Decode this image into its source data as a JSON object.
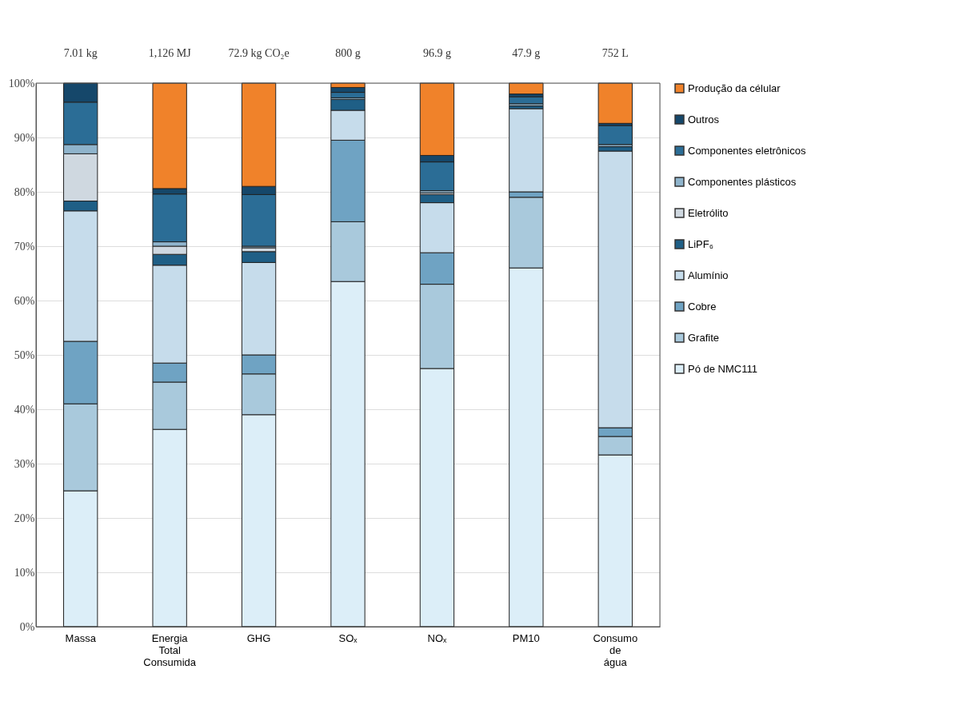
{
  "chart_data": {
    "type": "bar",
    "stacked": true,
    "categories": [
      "Massa",
      "Energia Total Consumida",
      "GHG",
      "SOₓ",
      "NOₓ",
      "PM10",
      "Consumo de água"
    ],
    "series": [
      {
        "name": "Pó de NMC111",
        "color": "#dceef8",
        "values": [
          25,
          36.3,
          39,
          63.5,
          47.5,
          66,
          31.6
        ]
      },
      {
        "name": "Grafite",
        "color": "#a9c9dc",
        "values": [
          16,
          8.7,
          7.5,
          11,
          15.5,
          13,
          3.4
        ]
      },
      {
        "name": "Cobre",
        "color": "#6fa3c3",
        "values": [
          11.5,
          3.5,
          3.5,
          15,
          5.8,
          1,
          1.6
        ]
      },
      {
        "name": "Alumínio",
        "color": "#c6dceb",
        "values": [
          24,
          18,
          17,
          5.5,
          9.2,
          15.3,
          50.9
        ]
      },
      {
        "name": "LiPF₆",
        "color": "#1f5f86",
        "values": [
          1.8,
          2,
          2,
          2,
          1.5,
          0.5,
          0.8
        ]
      },
      {
        "name": "Eletrólito",
        "color": "#cfd8e0",
        "values": [
          8.7,
          1.5,
          0.7,
          0,
          0.3,
          0,
          0
        ]
      },
      {
        "name": "Componentes plásticos",
        "color": "#8fb4cc",
        "values": [
          1.7,
          0.8,
          0.3,
          0.3,
          0.4,
          0.4,
          0.4
        ]
      },
      {
        "name": "Componentes eletrônicos",
        "color": "#2b6d96",
        "values": [
          7.8,
          8.8,
          9.5,
          1,
          5.3,
          1.3,
          3.5
        ]
      },
      {
        "name": "Outros",
        "color": "#15476a",
        "values": [
          3.5,
          1,
          1.5,
          0.9,
          1.2,
          0.5,
          0.4
        ]
      },
      {
        "name": "Produção da célular",
        "color": "#f0822a",
        "values": [
          0,
          19.4,
          19,
          0.8,
          13.3,
          2,
          7.4
        ]
      }
    ],
    "ylim": [
      0,
      100
    ],
    "yticks": [
      {
        "value": 0,
        "label": "0%"
      },
      {
        "value": 10,
        "label": "10%"
      },
      {
        "value": 20,
        "label": "20%"
      },
      {
        "value": 30,
        "label": "30%"
      },
      {
        "value": 40,
        "label": "40%"
      },
      {
        "value": 50,
        "label": "50%"
      },
      {
        "value": 60,
        "label": "60%"
      },
      {
        "value": 70,
        "label": "70%"
      },
      {
        "value": 80,
        "label": "80%"
      },
      {
        "value": 90,
        "label": "90%"
      },
      {
        "value": 100,
        "label": "100%"
      }
    ],
    "grid": "y",
    "legend": "right",
    "annotations": [
      "7.01 kg",
      "1,126 MJ",
      "72.9 kg CO₂e",
      "800 g",
      "96.9 g",
      "47.9 g",
      "752 L"
    ]
  }
}
